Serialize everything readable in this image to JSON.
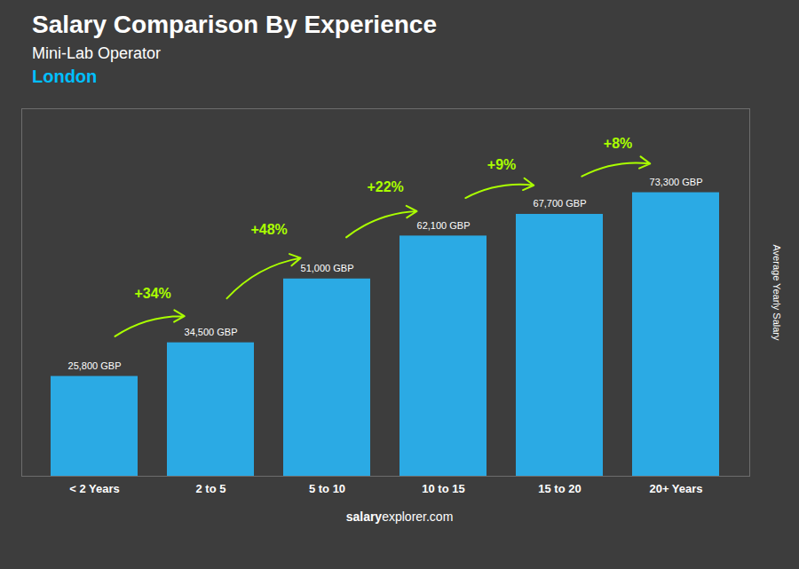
{
  "chart_data": {
    "type": "bar",
    "title": "Salary Comparison By Experience",
    "subtitle": "Mini-Lab Operator",
    "city": "London",
    "ylabel": "Average Yearly Salary",
    "categories": [
      "< 2 Years",
      "2 to 5",
      "5 to 10",
      "10 to 15",
      "15 to 20",
      "20+ Years"
    ],
    "values": [
      25800,
      34500,
      51000,
      62100,
      67700,
      73300
    ],
    "value_labels": [
      "25,800 GBP",
      "34,500 GBP",
      "51,000 GBP",
      "62,100 GBP",
      "67,700 GBP",
      "73,300 GBP"
    ],
    "data_labels": true,
    "pct_changes": [
      "+34%",
      "+48%",
      "+22%",
      "+9%",
      "+8%"
    ],
    "color": "#29B6F6",
    "ylim": [
      0,
      95000
    ],
    "tick_labels": "x",
    "grid": false,
    "footer": [
      "salary",
      "explorer.com"
    ]
  }
}
